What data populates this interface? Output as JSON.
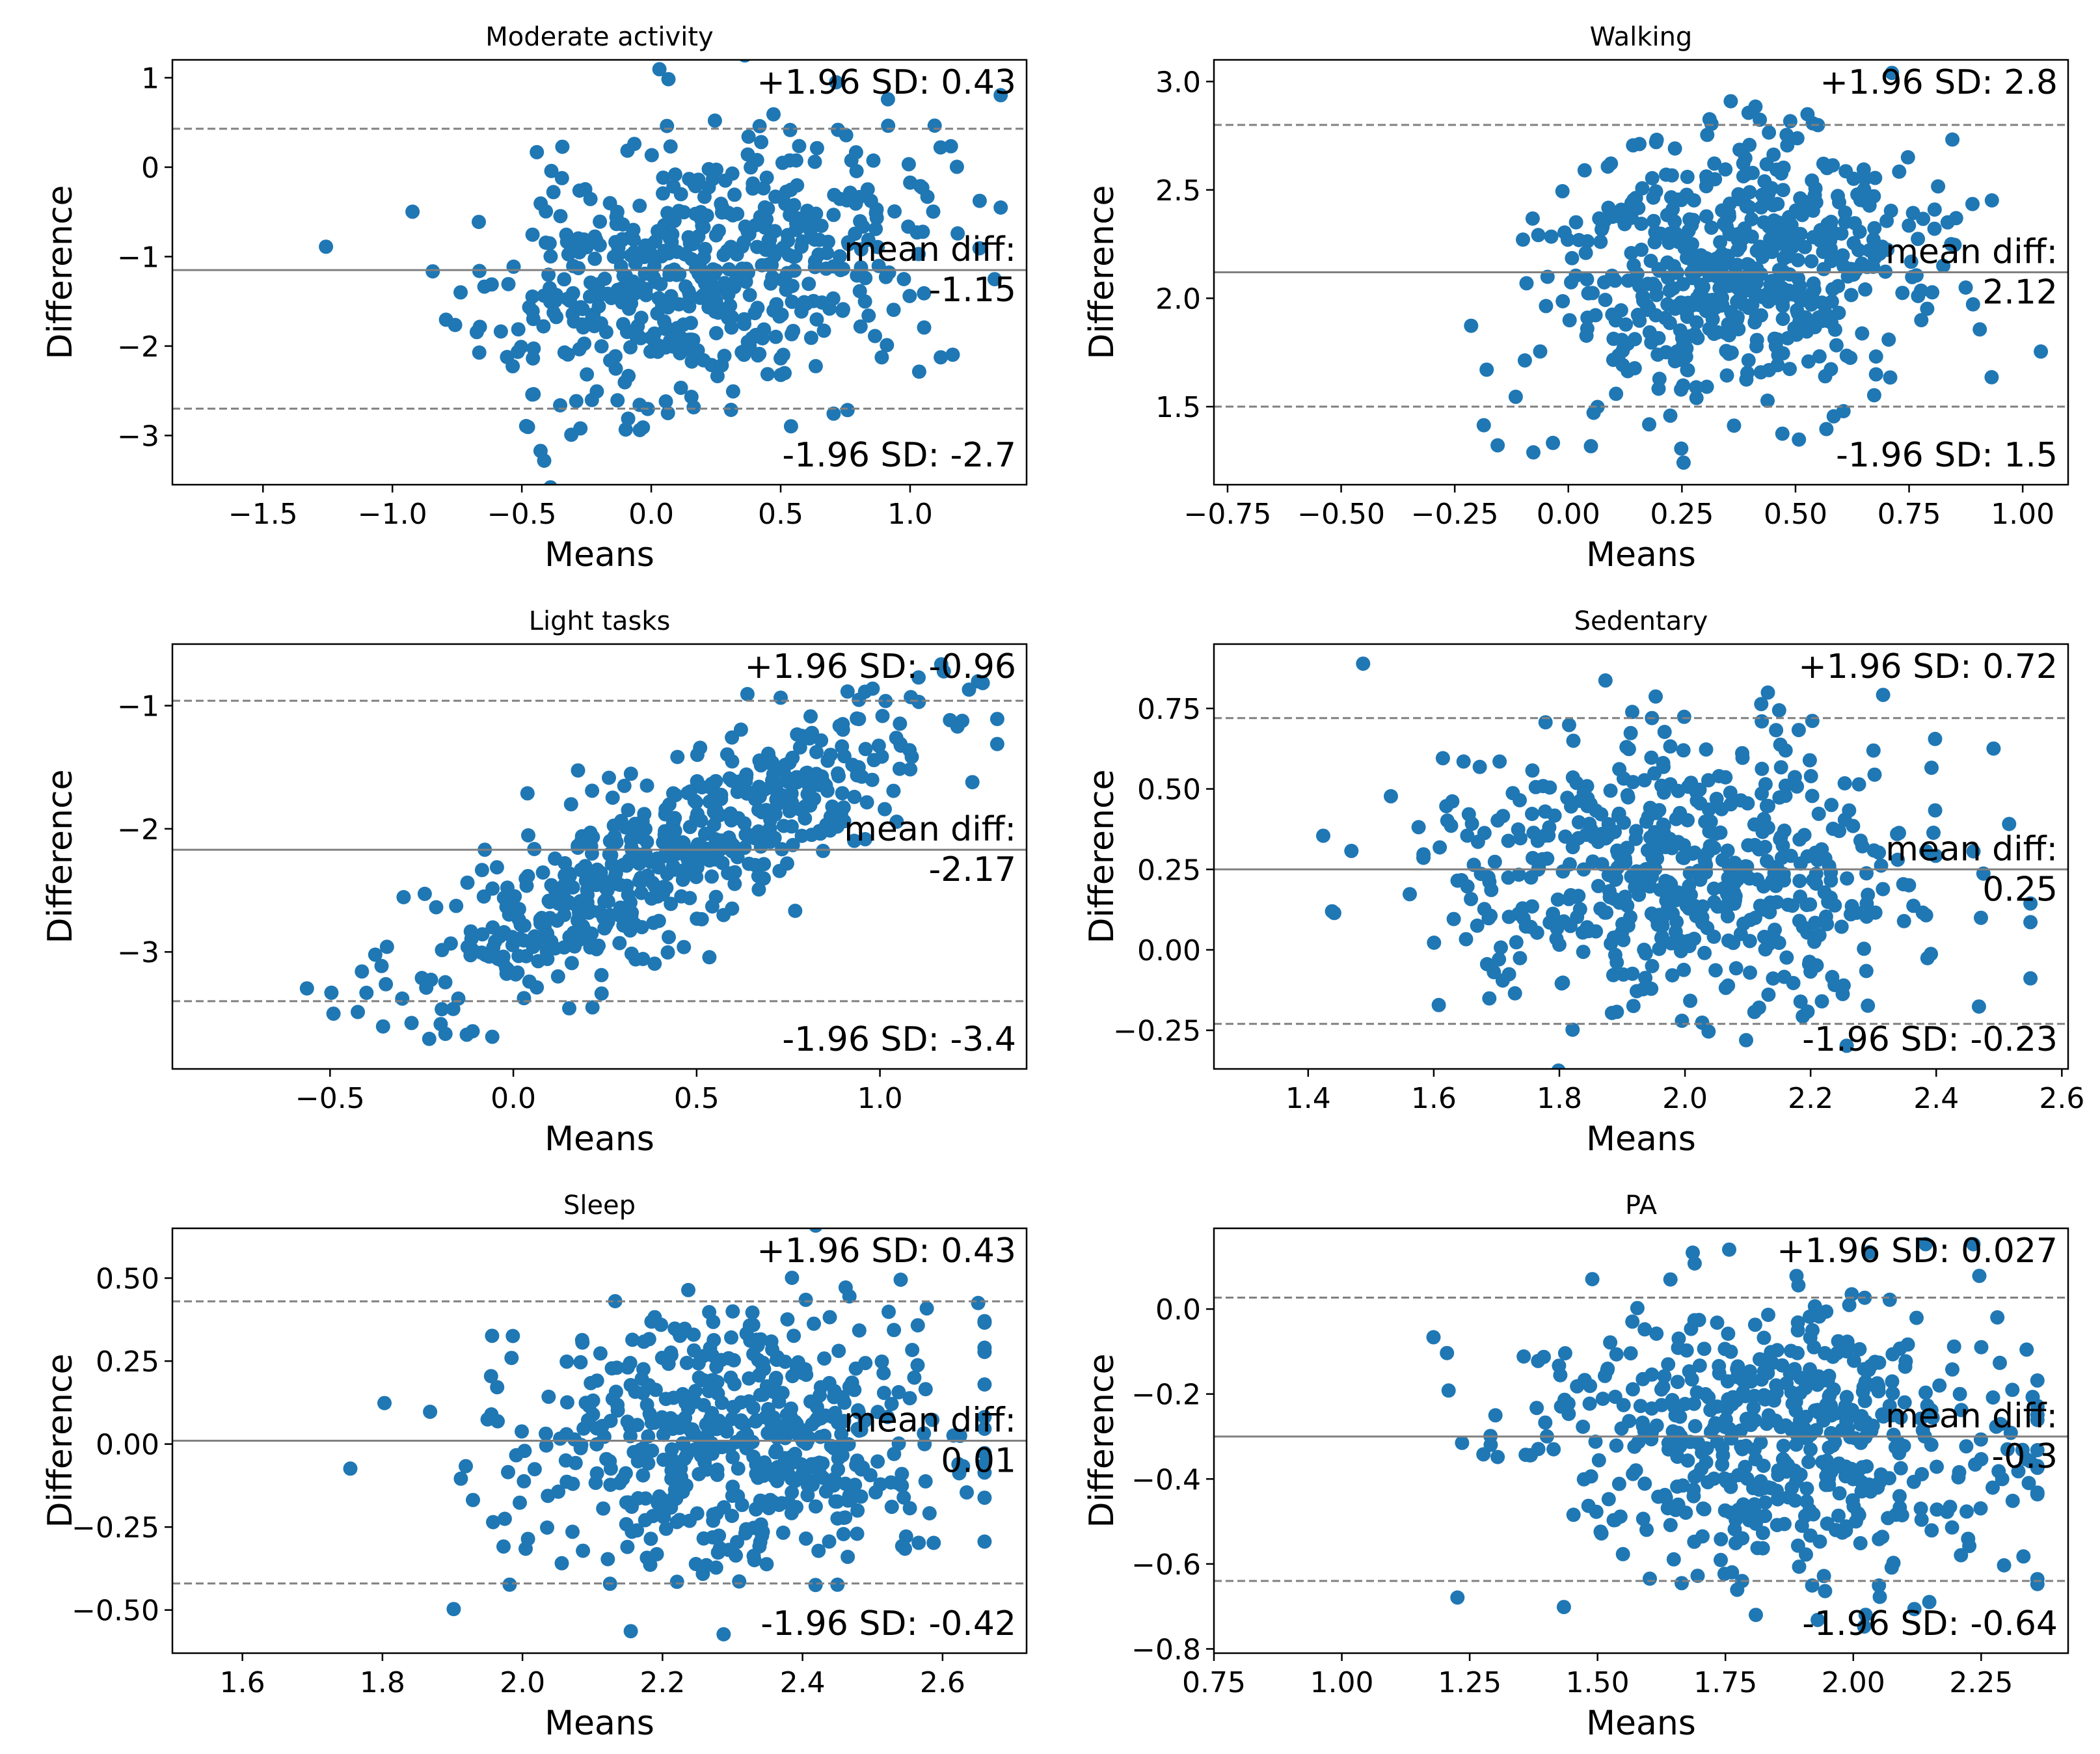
{
  "chart_data": [
    {
      "type": "scatter",
      "title": "Moderate activity",
      "xlabel": "Means",
      "ylabel": "Difference",
      "xlim": [
        -1.85,
        1.45
      ],
      "ylim": [
        -3.55,
        1.2
      ],
      "xticks": [
        -1.5,
        -1.0,
        -0.5,
        0.0,
        0.5,
        1.0
      ],
      "xtick_labels": [
        "−1.5",
        "−1.0",
        "−0.5",
        "0.0",
        "0.5",
        "1.0"
      ],
      "yticks": [
        1,
        0,
        -1,
        -2,
        -3
      ],
      "ytick_labels": [
        "1",
        "0",
        "−1",
        "−2",
        "−3"
      ],
      "mean_diff": -1.15,
      "upper_loa": 0.43,
      "lower_loa": -2.7,
      "annotations": {
        "upper": "+1.96 SD: 0.43",
        "mean_label": "mean diff:",
        "mean_value": "-1.15",
        "lower": "-1.96 SD: -2.7"
      },
      "n_points": 560,
      "seed": 11,
      "scatter_model": {
        "x_mean": 0.2,
        "x_sd": 0.42,
        "x_min": -1.55,
        "x_max": 1.35,
        "slope": 0.55,
        "resid_sd": 0.74
      }
    },
    {
      "type": "scatter",
      "title": "Walking",
      "xlabel": "Means",
      "ylabel": "Difference",
      "xlim": [
        -0.78,
        1.1
      ],
      "ylim": [
        1.14,
        3.1
      ],
      "xticks": [
        -0.75,
        -0.5,
        -0.25,
        0.0,
        0.25,
        0.5,
        0.75,
        1.0
      ],
      "xtick_labels": [
        "−0.75",
        "−0.50",
        "−0.25",
        "0.00",
        "0.25",
        "0.50",
        "0.75",
        "1.00"
      ],
      "yticks": [
        3.0,
        2.5,
        2.0,
        1.5
      ],
      "ytick_labels": [
        "3.0",
        "2.5",
        "2.0",
        "1.5"
      ],
      "mean_diff": 2.12,
      "upper_loa": 2.8,
      "lower_loa": 1.5,
      "annotations": {
        "upper": "+1.96 SD: 2.8",
        "mean_label": "mean diff:",
        "mean_value": "2.12",
        "lower": "-1.96 SD: 1.5"
      },
      "n_points": 560,
      "seed": 23,
      "scatter_model": {
        "x_mean": 0.36,
        "x_sd": 0.2,
        "x_min": -0.62,
        "x_max": 1.04,
        "slope": 0.2,
        "resid_sd": 0.31
      }
    },
    {
      "type": "scatter",
      "title": "Light tasks",
      "xlabel": "Means",
      "ylabel": "Difference",
      "xlim": [
        -0.93,
        1.4
      ],
      "ylim": [
        -3.95,
        -0.5
      ],
      "xticks": [
        -0.5,
        0.0,
        0.5,
        1.0
      ],
      "xtick_labels": [
        "−0.5",
        "0.0",
        "0.5",
        "1.0"
      ],
      "yticks": [
        -1,
        -2,
        -3
      ],
      "ytick_labels": [
        "−1",
        "−2",
        "−3"
      ],
      "mean_diff": -2.17,
      "upper_loa": -0.96,
      "lower_loa": -3.4,
      "annotations": {
        "upper": "+1.96 SD: -0.96",
        "mean_label": "mean diff:",
        "mean_value": "-2.17",
        "lower": "-1.96 SD: -3.4"
      },
      "n_points": 560,
      "seed": 37,
      "scatter_model": {
        "x_mean": 0.45,
        "x_sd": 0.35,
        "x_min": -0.86,
        "x_max": 1.32,
        "slope": 1.45,
        "resid_sd": 0.34
      }
    },
    {
      "type": "scatter",
      "title": "Sedentary",
      "xlabel": "Means",
      "ylabel": "Difference",
      "xlim": [
        1.25,
        2.61
      ],
      "ylim": [
        -0.37,
        0.95
      ],
      "xticks": [
        1.4,
        1.6,
        1.8,
        2.0,
        2.2,
        2.4,
        2.6
      ],
      "xtick_labels": [
        "1.4",
        "1.6",
        "1.8",
        "2.0",
        "2.2",
        "2.4",
        "2.6"
      ],
      "yticks": [
        0.75,
        0.5,
        0.25,
        0.0,
        -0.25
      ],
      "ytick_labels": [
        "0.75",
        "0.50",
        "0.25",
        "0.00",
        "−0.25"
      ],
      "mean_diff": 0.25,
      "upper_loa": 0.72,
      "lower_loa": -0.23,
      "annotations": {
        "upper": "+1.96 SD: 0.72",
        "mean_label": "mean diff:",
        "mean_value": "0.25",
        "lower": "-1.96 SD: -0.23"
      },
      "n_points": 560,
      "seed": 41,
      "scatter_model": {
        "x_mean": 2.0,
        "x_sd": 0.2,
        "x_min": 1.3,
        "x_max": 2.55,
        "slope": 0.0,
        "resid_sd": 0.23
      }
    },
    {
      "type": "scatter",
      "title": "Sleep",
      "xlabel": "Means",
      "ylabel": "Difference",
      "xlim": [
        1.5,
        2.72
      ],
      "ylim": [
        -0.63,
        0.65
      ],
      "xticks": [
        1.6,
        1.8,
        2.0,
        2.2,
        2.4,
        2.6
      ],
      "xtick_labels": [
        "1.6",
        "1.8",
        "2.0",
        "2.2",
        "2.4",
        "2.6"
      ],
      "yticks": [
        0.5,
        0.25,
        0.0,
        -0.25,
        -0.5
      ],
      "ytick_labels": [
        "0.50",
        "0.25",
        "0.00",
        "−0.25",
        "−0.50"
      ],
      "mean_diff": 0.01,
      "upper_loa": 0.43,
      "lower_loa": -0.42,
      "annotations": {
        "upper": "+1.96 SD: 0.43",
        "mean_label": "mean diff:",
        "mean_value": "0.01",
        "lower": "-1.96 SD: -0.42"
      },
      "n_points": 560,
      "seed": 53,
      "scatter_model": {
        "x_mean": 2.3,
        "x_sd": 0.16,
        "x_min": 1.54,
        "x_max": 2.66,
        "slope": 0.0,
        "resid_sd": 0.2
      }
    },
    {
      "type": "scatter",
      "title": "PA",
      "xlabel": "Means",
      "ylabel": "Difference",
      "xlim": [
        0.75,
        2.42
      ],
      "ylim": [
        -0.81,
        0.19
      ],
      "xticks": [
        0.75,
        1.0,
        1.25,
        1.5,
        1.75,
        2.0,
        2.25
      ],
      "xtick_labels": [
        "0.75",
        "1.00",
        "1.25",
        "1.50",
        "1.75",
        "2.00",
        "2.25"
      ],
      "yticks": [
        0.0,
        -0.2,
        -0.4,
        -0.6,
        -0.8
      ],
      "ytick_labels": [
        "0.0",
        "−0.2",
        "−0.4",
        "−0.6",
        "−0.8"
      ],
      "mean_diff": -0.3,
      "upper_loa": 0.027,
      "lower_loa": -0.64,
      "annotations": {
        "upper": "+1.96 SD: 0.027",
        "mean_label": "mean diff:",
        "mean_value": "-0.3",
        "lower": "-1.96 SD: -0.64"
      },
      "n_points": 560,
      "seed": 67,
      "scatter_model": {
        "x_mean": 1.85,
        "x_sd": 0.25,
        "x_min": 0.8,
        "x_max": 2.36,
        "slope": 0.0,
        "resid_sd": 0.16
      }
    }
  ],
  "colors": {
    "point": "#1f77b4",
    "mean_line": "#808080",
    "loa_line": "#808080",
    "axes": "#000000",
    "text": "#000000"
  }
}
